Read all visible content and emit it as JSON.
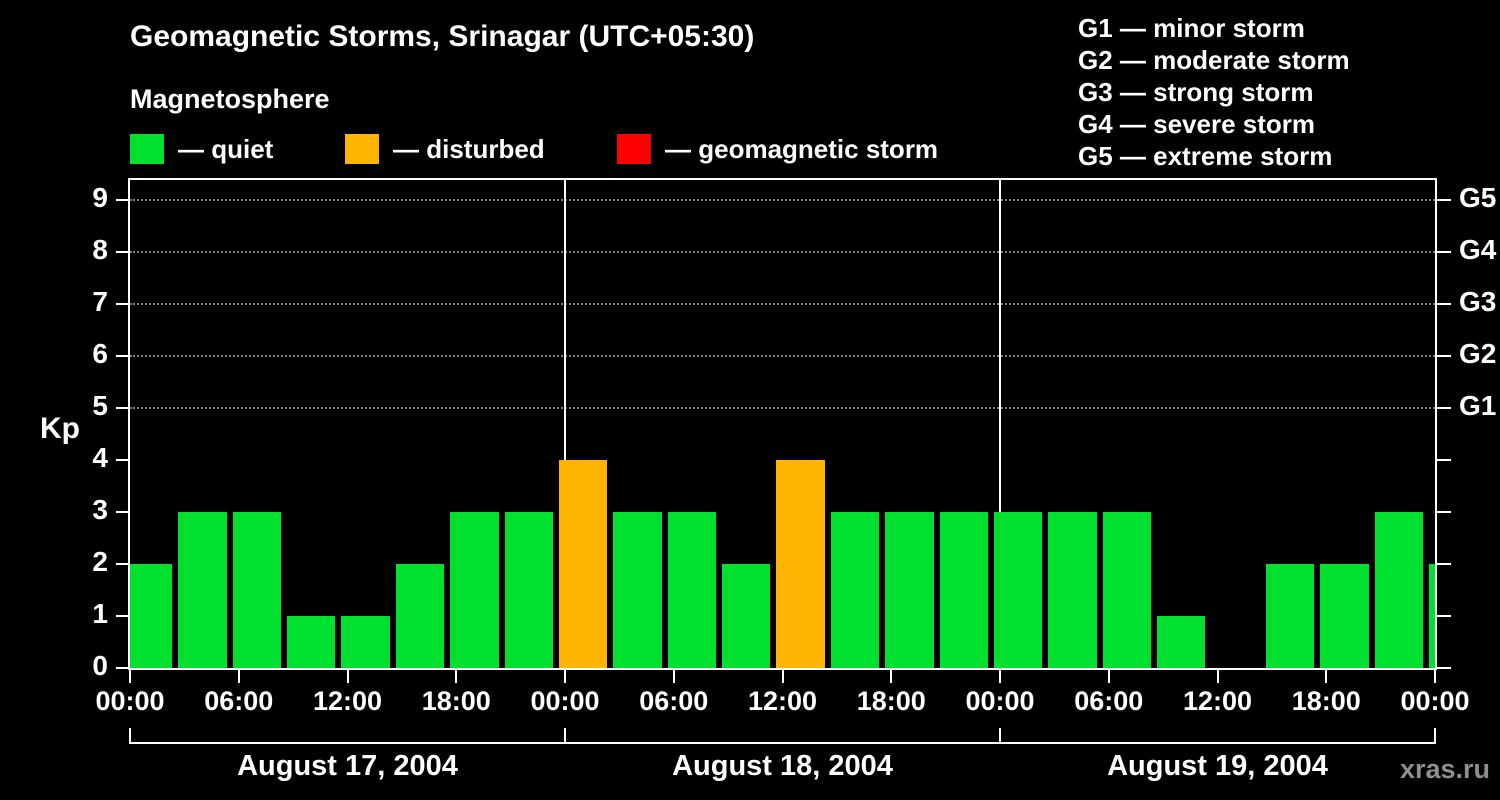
{
  "header": {
    "title": "Geomagnetic Storms, Srinagar (UTC+05:30)",
    "subtitle": "Magnetosphere"
  },
  "legend": {
    "items": [
      {
        "key": "quiet",
        "label": "— quiet",
        "color": "#00e02e"
      },
      {
        "key": "disturbed",
        "label": "— disturbed",
        "color": "#ffb400"
      },
      {
        "key": "storm",
        "label": "— geomagnetic storm",
        "color": "#ff0000"
      }
    ]
  },
  "storm_scale_legend": [
    "G1 — minor storm",
    "G2 — moderate storm",
    "G3 — strong storm",
    "G4 — severe storm",
    "G5 — extreme storm"
  ],
  "chart_data": {
    "type": "bar",
    "title": "Geomagnetic Storms, Srinagar (UTC+05:30)",
    "ylabel": "Kp",
    "ylim": [
      0,
      9.3
    ],
    "y_ticks": [
      0,
      1,
      2,
      3,
      4,
      5,
      6,
      7,
      8,
      9
    ],
    "right_labels": [
      {
        "label": "G1",
        "kp": 5
      },
      {
        "label": "G2",
        "kp": 6
      },
      {
        "label": "G3",
        "kp": 7
      },
      {
        "label": "G4",
        "kp": 8
      },
      {
        "label": "G5",
        "kp": 9
      }
    ],
    "x_tick_labels": [
      "00:00",
      "06:00",
      "12:00",
      "18:00",
      "00:00",
      "06:00",
      "12:00",
      "18:00",
      "00:00",
      "06:00",
      "12:00",
      "18:00",
      "00:00"
    ],
    "interval_hours": 3,
    "bar_offset_hours": -0.5,
    "days": [
      {
        "label": "August 17, 2004",
        "values": [
          2,
          3,
          3,
          1,
          1,
          2,
          3,
          3
        ]
      },
      {
        "label": "August 18, 2004",
        "values": [
          4,
          3,
          3,
          2,
          4,
          3,
          3,
          3
        ]
      },
      {
        "label": "August 19, 2004",
        "values": [
          3,
          3,
          3,
          1,
          0,
          2,
          2,
          3
        ]
      }
    ],
    "partial_next_kp": 2,
    "colors": {
      "quiet": "#00e02e",
      "disturbed": "#ffb400",
      "storm": "#ff0000"
    },
    "thresholds": {
      "disturbed_min": 4,
      "storm_min": 5
    },
    "grid": "dotted horizontal lines at G1–G5 levels",
    "legend_position": "top"
  },
  "watermark": "xras.ru"
}
